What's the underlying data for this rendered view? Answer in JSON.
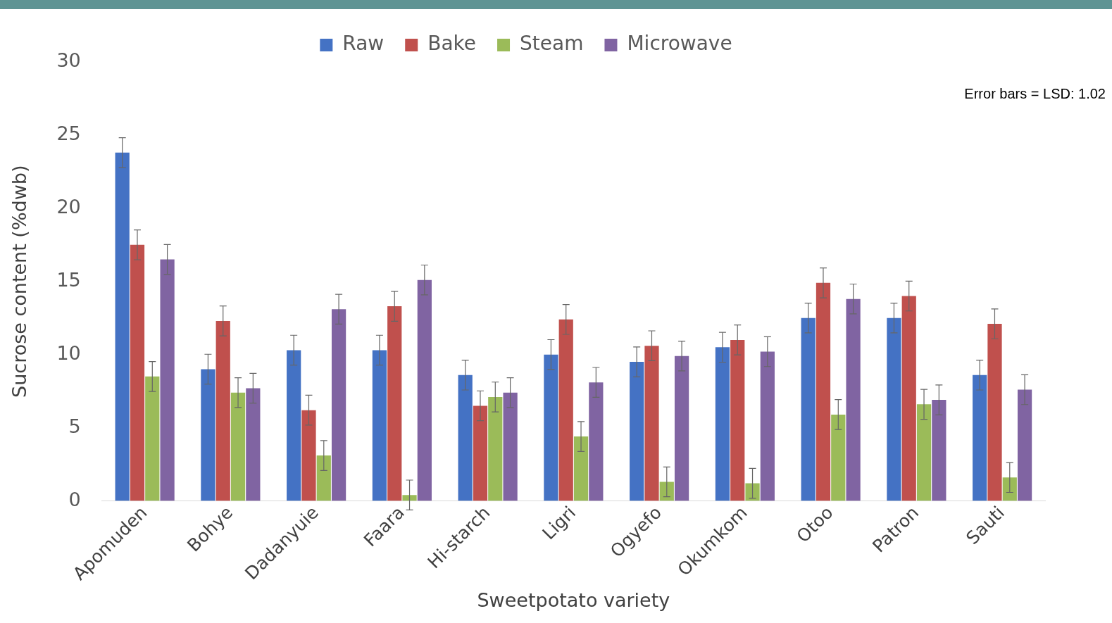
{
  "chart_data": {
    "type": "bar",
    "xlabel": "Sweetpotato variety",
    "ylabel": "Sucrose content (%dwb)",
    "categories": [
      "Apomuden",
      "Bohye",
      "Dadanyuie",
      "Faara",
      "Hi-starch",
      "Ligri",
      "Ogyefo",
      "Okumkom",
      "Otoo",
      "Patron",
      "Sauti"
    ],
    "series": [
      {
        "name": "Raw",
        "color": "#4472c4",
        "values": [
          23.8,
          9.0,
          10.3,
          10.3,
          8.6,
          10.0,
          9.5,
          10.5,
          12.5,
          12.5,
          8.6
        ],
        "errors": [
          1.02,
          1.02,
          1.02,
          1.02,
          1.02,
          1.02,
          1.02,
          1.02,
          1.02,
          1.02,
          1.02
        ]
      },
      {
        "name": "Bake",
        "color": "#c0504d",
        "values": [
          17.5,
          12.3,
          6.2,
          13.3,
          6.5,
          12.4,
          10.6,
          11.0,
          14.9,
          14.0,
          12.1
        ],
        "errors": [
          1.02,
          1.02,
          1.02,
          1.02,
          1.02,
          1.02,
          1.02,
          1.02,
          1.02,
          1.02,
          1.02
        ]
      },
      {
        "name": "Steam",
        "color": "#9bbb59",
        "values": [
          8.5,
          7.4,
          3.1,
          0.4,
          7.1,
          4.4,
          1.3,
          1.2,
          5.9,
          6.6,
          1.6
        ],
        "errors": [
          1.02,
          1.02,
          1.02,
          1.02,
          1.02,
          1.02,
          1.02,
          1.02,
          1.02,
          1.02,
          1.02
        ]
      },
      {
        "name": "Microwave",
        "color": "#8064a2",
        "values": [
          16.5,
          7.7,
          13.1,
          15.1,
          7.4,
          8.1,
          9.9,
          10.2,
          13.8,
          6.9,
          7.6
        ],
        "errors": [
          1.02,
          1.02,
          1.02,
          1.02,
          1.02,
          1.02,
          1.02,
          1.02,
          1.02,
          1.02,
          1.02
        ]
      }
    ],
    "ylim": [
      0,
      30
    ],
    "yticks": [
      0,
      5,
      10,
      15,
      20,
      25,
      30
    ],
    "grid": false,
    "legend": "top",
    "annotations": [
      "Error bars = LSD: 1.02"
    ]
  }
}
